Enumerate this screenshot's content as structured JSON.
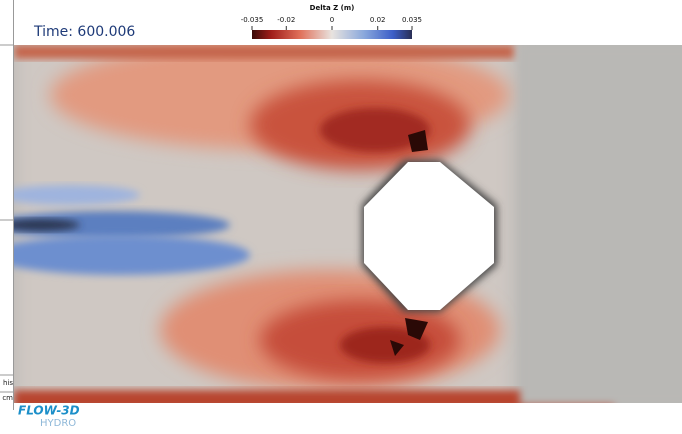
{
  "header": {
    "time_label": "Time: 600.006"
  },
  "colorbar": {
    "title": "Delta Z (m)",
    "ticks": [
      -0.035,
      -0.02,
      0,
      0.02,
      0.035
    ]
  },
  "side_panel": {
    "texts": [
      "his",
      "cm"
    ]
  },
  "logo": {
    "name": "FLOW-3D",
    "product": "HYDRO"
  }
}
